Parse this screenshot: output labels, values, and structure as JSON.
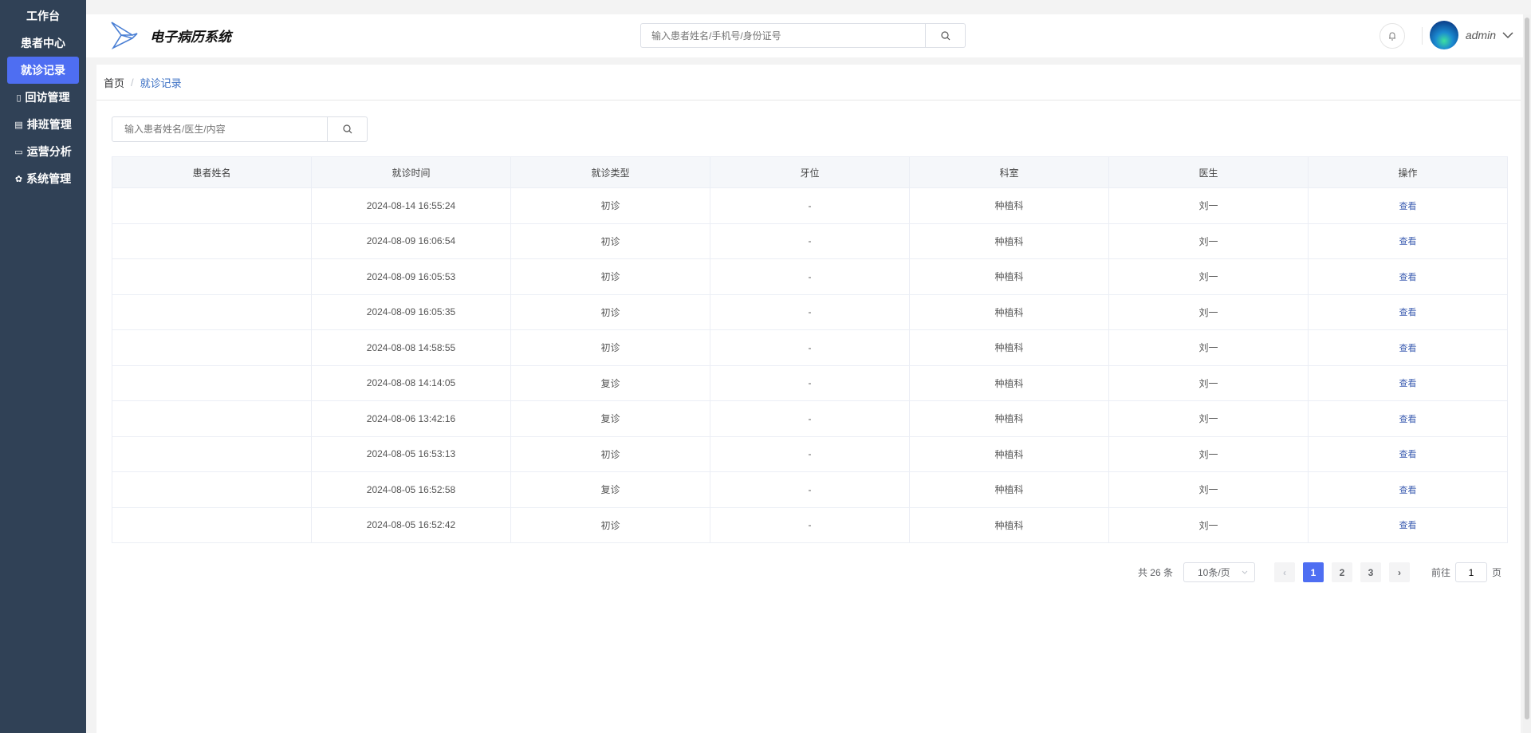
{
  "sidebar": {
    "items": [
      {
        "label": "工作台",
        "icon": "",
        "active": false
      },
      {
        "label": "患者中心",
        "icon": "",
        "active": false
      },
      {
        "label": "就诊记录",
        "icon": "",
        "active": true
      },
      {
        "label": "回访管理",
        "icon": "mobile-icon",
        "active": false
      },
      {
        "label": "排班管理",
        "icon": "calendar-icon",
        "active": false
      },
      {
        "label": "运营分析",
        "icon": "monitor-icon",
        "active": false
      },
      {
        "label": "系统管理",
        "icon": "gear-icon",
        "active": false
      }
    ]
  },
  "header": {
    "title": "电子病历系统",
    "search_placeholder": "输入患者姓名/手机号/身份证号",
    "user": "admin"
  },
  "breadcrumb": {
    "home": "首页",
    "sep": "/",
    "current": "就诊记录"
  },
  "filter": {
    "placeholder": "输入患者姓名/医生/内容"
  },
  "table": {
    "columns": [
      "患者姓名",
      "就诊时间",
      "就诊类型",
      "牙位",
      "科室",
      "医生",
      "操作"
    ],
    "rows": [
      [
        "",
        "2024-08-14 16:55:24",
        "初诊",
        "-",
        "种植科",
        "刘一",
        "查看"
      ],
      [
        "",
        "2024-08-09 16:06:54",
        "初诊",
        "-",
        "种植科",
        "刘一",
        "查看"
      ],
      [
        "",
        "2024-08-09 16:05:53",
        "初诊",
        "-",
        "种植科",
        "刘一",
        "查看"
      ],
      [
        "",
        "2024-08-09 16:05:35",
        "初诊",
        "-",
        "种植科",
        "刘一",
        "查看"
      ],
      [
        "",
        "2024-08-08 14:58:55",
        "初诊",
        "-",
        "种植科",
        "刘一",
        "查看"
      ],
      [
        "",
        "2024-08-08 14:14:05",
        "复诊",
        "-",
        "种植科",
        "刘一",
        "查看"
      ],
      [
        "",
        "2024-08-06 13:42:16",
        "复诊",
        "-",
        "种植科",
        "刘一",
        "查看"
      ],
      [
        "",
        "2024-08-05 16:53:13",
        "初诊",
        "-",
        "种植科",
        "刘一",
        "查看"
      ],
      [
        "",
        "2024-08-05 16:52:58",
        "复诊",
        "-",
        "种植科",
        "刘一",
        "查看"
      ],
      [
        "",
        "2024-08-05 16:52:42",
        "初诊",
        "-",
        "种植科",
        "刘一",
        "查看"
      ]
    ]
  },
  "pagination": {
    "total": "共 26 条",
    "page_size": "10条/页",
    "pages": [
      "1",
      "2",
      "3"
    ],
    "current": "1",
    "goto_prefix": "前往",
    "goto_value": "1",
    "goto_suffix": "页"
  },
  "colors": {
    "sidebar": "#304156",
    "accent": "#4e6ef2",
    "link": "#3a5bb0"
  }
}
